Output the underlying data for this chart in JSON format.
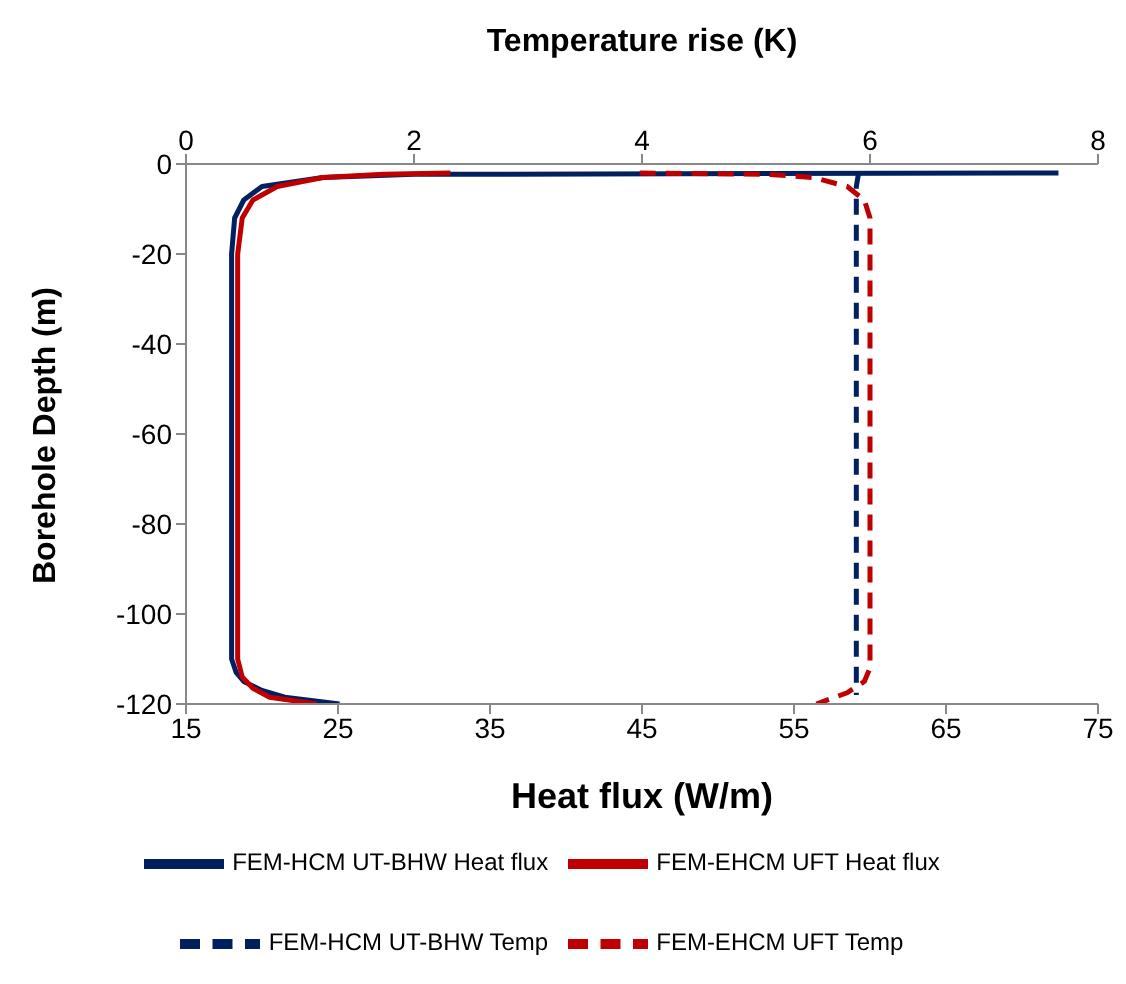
{
  "chart_data": {
    "type": "line",
    "xlabel": "Heat flux (W/m)",
    "x2label": "Temperature rise (K)",
    "ylabel": "Borehole Depth (m)",
    "xlim": [
      15,
      75
    ],
    "xticks": [
      15,
      25,
      35,
      45,
      55,
      65,
      75
    ],
    "x2lim": [
      0,
      8
    ],
    "x2ticks": [
      0,
      2,
      4,
      6,
      8
    ],
    "ylim": [
      -120,
      0
    ],
    "yticks": [
      -120,
      -100,
      -80,
      -60,
      -40,
      -20,
      0
    ],
    "grid": false,
    "legend": "bottom",
    "marker": "none",
    "series": [
      {
        "name": "FEM-HCM UT-BHW Heat flux",
        "color": "#002060",
        "line_style": "solid",
        "x": [
          72.4,
          30,
          24,
          20,
          18.8,
          18.2,
          18,
          18,
          18,
          18,
          18.3,
          18.8,
          20,
          21.5,
          25.1
        ],
        "values": [
          -2,
          -2.3,
          -3,
          -5,
          -8,
          -12,
          -20,
          -60,
          -100,
          -110,
          -113,
          -115,
          -117,
          -118.5,
          -120
        ]
      },
      {
        "name": "FEM-EHCM UFT Heat flux",
        "color": "#c00000",
        "line_style": "solid",
        "x": [
          32.4,
          28,
          24,
          21,
          19.4,
          18.7,
          18.4,
          18.4,
          18.4,
          18.7,
          19.4,
          20.5,
          23.6
        ],
        "values": [
          -2,
          -2.3,
          -3,
          -5,
          -8,
          -12,
          -20,
          -60,
          -110,
          -114,
          -116.5,
          -118.5,
          -120
        ]
      },
      {
        "name": "FEM-HCM UT-BHW Temp",
        "color": "#002060",
        "line_style": "dashed",
        "axis": "x2",
        "x": [
          5.9,
          5.88,
          5.88,
          5.88
        ],
        "values": [
          -2,
          -5,
          -60,
          -118
        ]
      },
      {
        "name": "FEM-EHCM UFT Temp",
        "color": "#c00000",
        "line_style": "dashed",
        "axis": "x2",
        "x": [
          3.98,
          5.1,
          5.5,
          5.8,
          5.95,
          6.0,
          6.0,
          5.95,
          5.8,
          5.53
        ],
        "values": [
          -2,
          -2.3,
          -3,
          -5,
          -8,
          -12,
          -112,
          -115,
          -117.5,
          -120
        ]
      }
    ]
  }
}
